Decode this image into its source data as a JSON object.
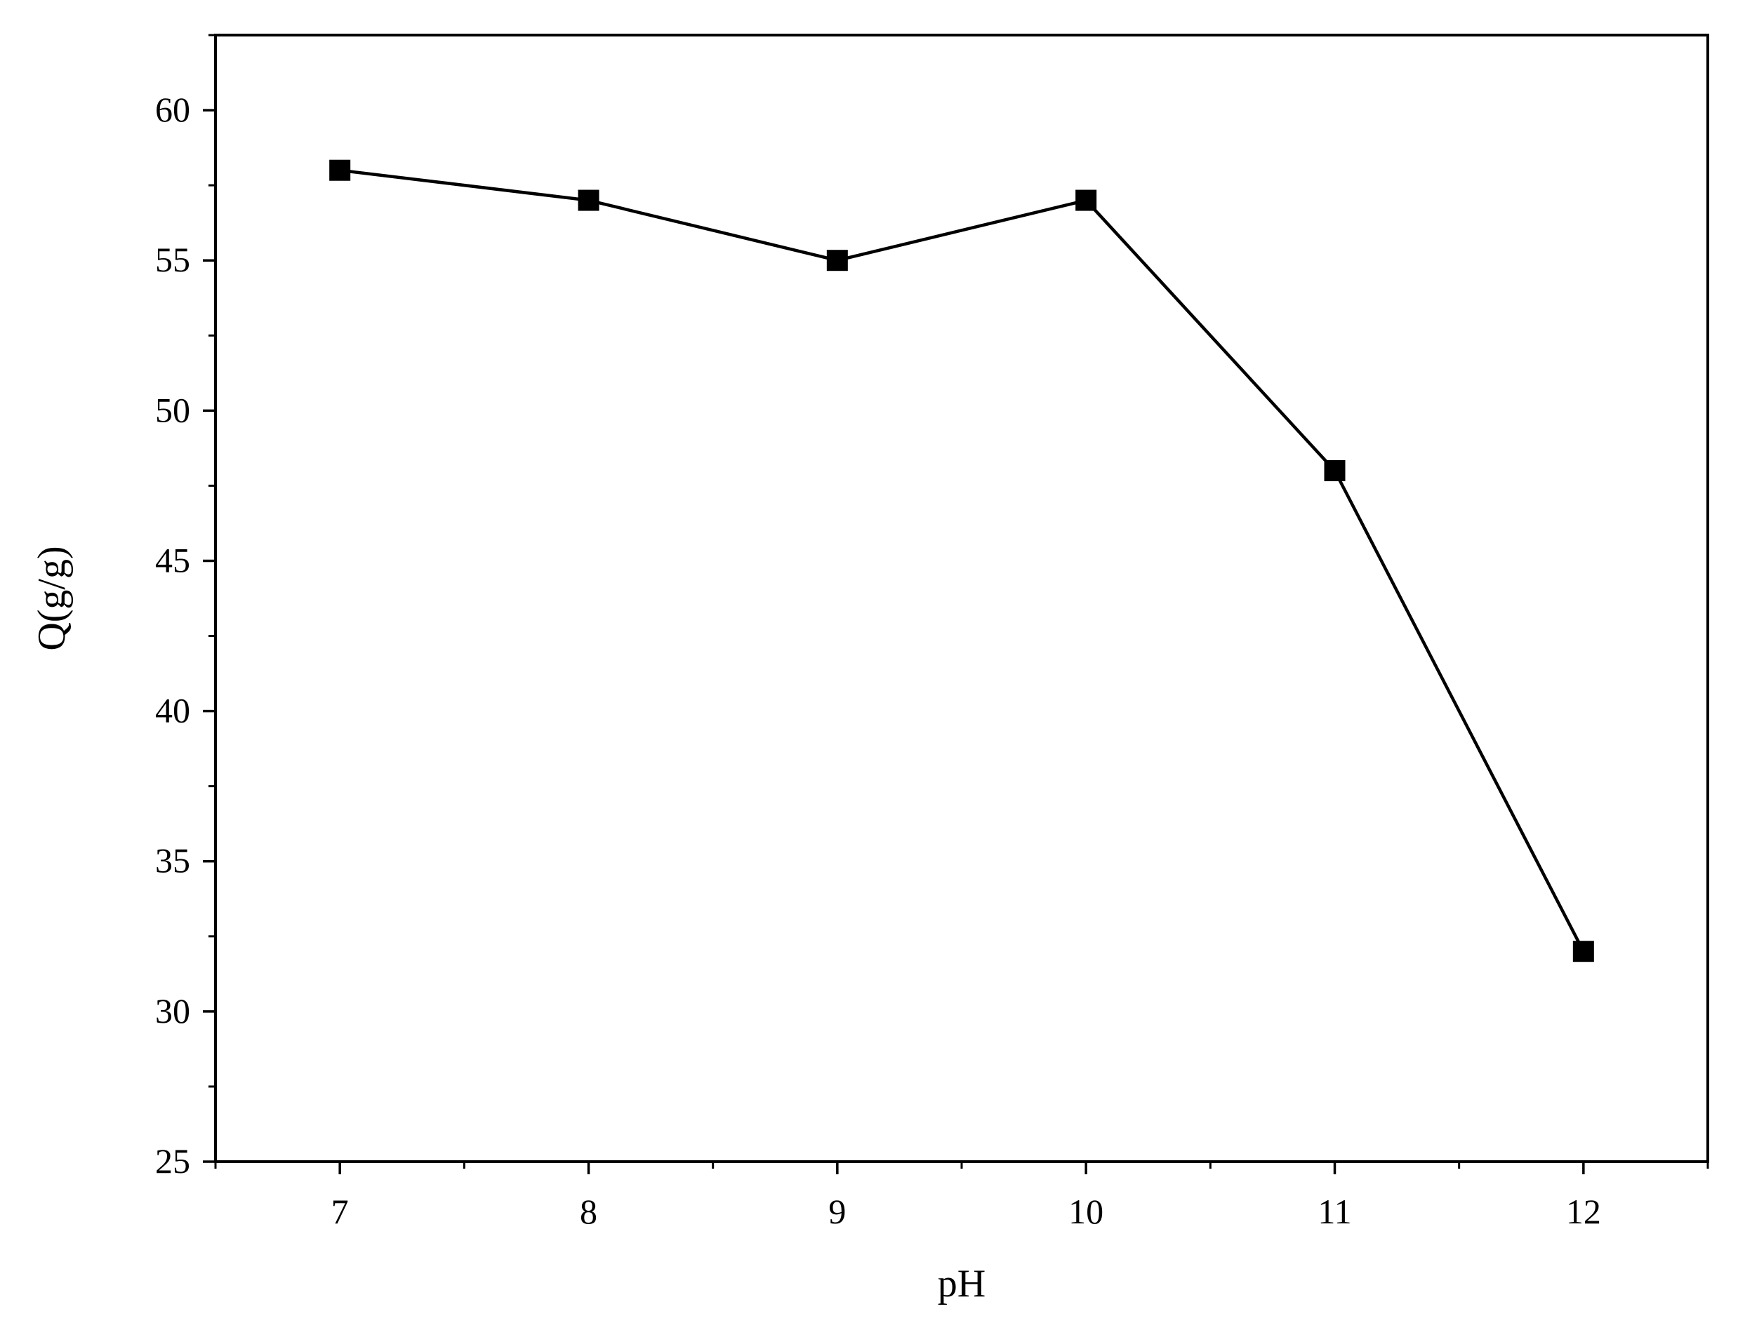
{
  "chart_data": {
    "type": "line",
    "title": "",
    "xlabel": "pH",
    "ylabel": "Q(g/g)",
    "x": [
      7,
      8,
      9,
      10,
      11,
      12
    ],
    "series": [
      {
        "values": [
          58,
          57,
          55,
          57,
          48,
          32
        ],
        "marker": "square",
        "color": "#000000"
      }
    ],
    "xlim": [
      6.5,
      12.5
    ],
    "ylim": [
      25,
      62.5
    ],
    "xticks": [
      7,
      8,
      9,
      10,
      11,
      12
    ],
    "yticks": [
      25,
      30,
      35,
      40,
      45,
      50,
      55,
      60
    ],
    "grid": false,
    "legend": "none"
  }
}
